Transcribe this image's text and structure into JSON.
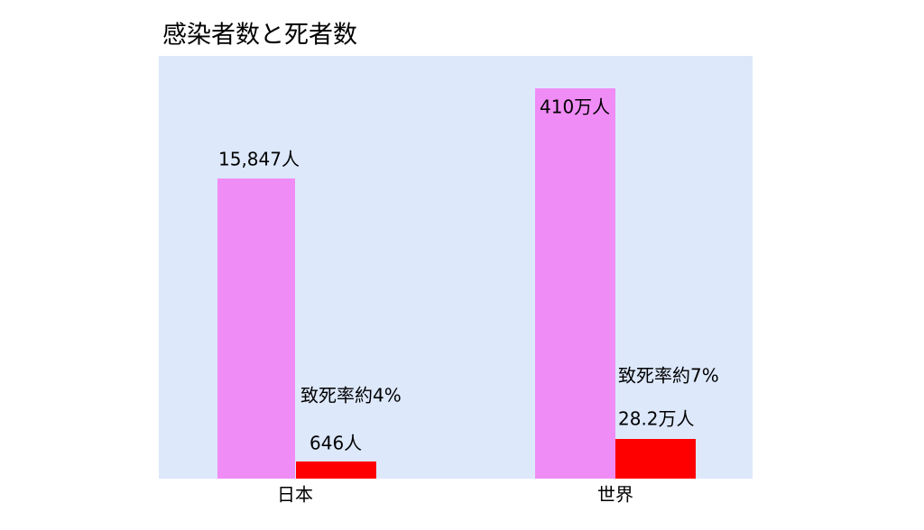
{
  "chart_data": {
    "type": "bar",
    "title": "感染者数と死者数",
    "categories": [
      "日本",
      "世界"
    ],
    "series": [
      {
        "color": "#f08cf5",
        "labels": [
          "15,847人",
          "410万人"
        ]
      },
      {
        "color": "#ff0000",
        "labels": [
          "646人",
          "28.2万人"
        ]
      }
    ],
    "annotations": [
      "致死率約4%",
      "致死率約7%"
    ],
    "background": "#dde8fb"
  }
}
